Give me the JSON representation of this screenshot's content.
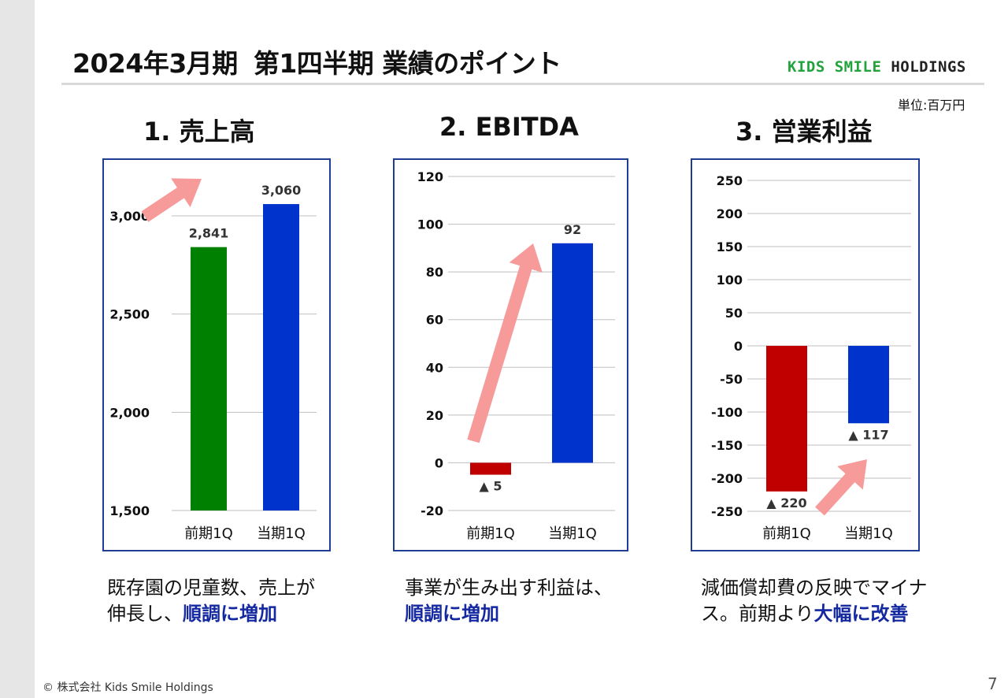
{
  "title": {
    "main": "2024年3月期",
    "sub": "第1四半期 業績のポイント"
  },
  "logo": {
    "part1": "KIDS SMILE",
    "part2": "HOLDINGS"
  },
  "unit_label": "単位:百万円",
  "charts": [
    {
      "heading": "1. 売上高"
    },
    {
      "heading": "2. EBITDA"
    },
    {
      "heading": "3. 営業利益"
    }
  ],
  "captions": [
    {
      "line1": "既存園の児童数、売上が",
      "line2_plain": "伸長し、",
      "line2_hl": "順調に増加",
      "line2_after": ""
    },
    {
      "line1": "事業が生み出す利益は、",
      "line2_plain": "",
      "line2_hl": "順調に増加",
      "line2_after": ""
    },
    {
      "line1": "減価償却費の反映でマイナ",
      "line2_plain": "ス。前期より",
      "line2_hl": "大幅に改善",
      "line2_after": ""
    }
  ],
  "footer": "© 株式会社 Kids Smile Holdings",
  "page_number": "7",
  "colors": {
    "green": "#008000",
    "blue": "#0033cc",
    "red": "#c00000",
    "arrow": "#f79a9a",
    "frame": "#1f3c96"
  },
  "chart_data": [
    {
      "type": "bar",
      "categories": [
        "前期1Q",
        "当期1Q"
      ],
      "values": [
        2841,
        3060
      ],
      "data_labels": [
        "2,841",
        "3,060"
      ],
      "ylim": [
        1500,
        3060
      ],
      "yticks": [
        1500,
        2000,
        2500,
        3000
      ],
      "ytick_labels": [
        "1,500",
        "2,000",
        "2,500",
        "3,000"
      ],
      "bar_colors": [
        "#008000",
        "#0033cc"
      ],
      "grid": true
    },
    {
      "type": "bar",
      "categories": [
        "前期1Q",
        "当期1Q"
      ],
      "values": [
        -5,
        92
      ],
      "data_labels": [
        "▲ 5",
        "92"
      ],
      "ylim": [
        -20,
        120
      ],
      "yticks": [
        -20,
        0,
        20,
        40,
        60,
        80,
        100,
        120
      ],
      "ytick_labels": [
        "-20",
        "0",
        "20",
        "40",
        "60",
        "80",
        "100",
        "120"
      ],
      "bar_colors": [
        "#c00000",
        "#0033cc"
      ],
      "grid": true
    },
    {
      "type": "bar",
      "categories": [
        "前期1Q",
        "当期1Q"
      ],
      "values": [
        -220,
        -117
      ],
      "data_labels": [
        "▲ 220",
        "▲ 117"
      ],
      "ylim": [
        -250,
        250
      ],
      "yticks": [
        -250,
        -200,
        -150,
        -100,
        -50,
        0,
        50,
        100,
        150,
        200,
        250
      ],
      "ytick_labels": [
        "-250",
        "-200",
        "-150",
        "-100",
        "-50",
        "0",
        "50",
        "100",
        "150",
        "200",
        "250"
      ],
      "bar_colors": [
        "#c00000",
        "#0033cc"
      ],
      "grid": true
    }
  ]
}
